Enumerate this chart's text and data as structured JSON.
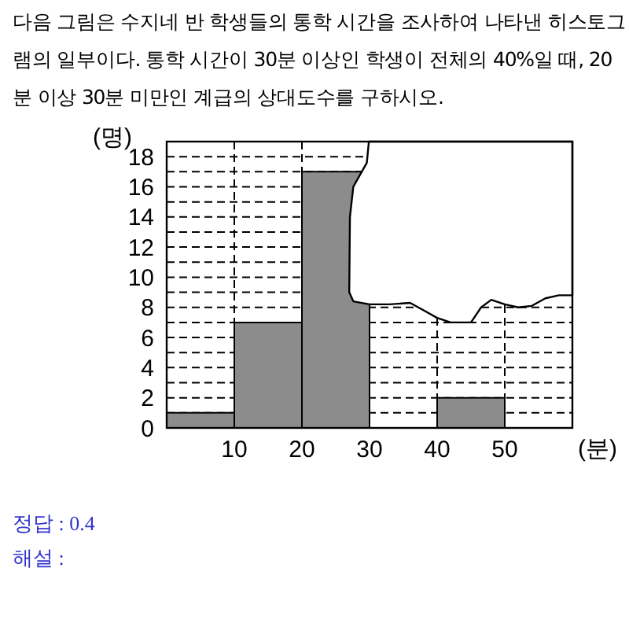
{
  "chart_data": {
    "type": "histogram",
    "title": "다음 그림은 수지네 반 학생들의 통학 시간을 조사하여 나타낸 히스토그램의 일부이다. 통학 시간이 30분 이상인 학생이 전체의 40%일 때, 20분 이상 30분 미만인 계급의 상대도수를 구하시오.",
    "xlabel": "(분)",
    "ylabel": "(명)",
    "bins": [
      0,
      10,
      20,
      30,
      40,
      50,
      60
    ],
    "values": [
      1,
      7,
      17,
      null,
      2,
      0
    ],
    "color": "#8c8c8c",
    "xlim": [
      0,
      60
    ],
    "ylim": [
      0,
      19
    ],
    "xticks": [
      10,
      20,
      30,
      40,
      50
    ],
    "yticks": [
      0,
      {
        "value": 1,
        "label": null
      },
      2,
      {
        "value": 3,
        "label": null
      },
      4,
      {
        "value": 5,
        "label": null
      },
      6,
      {
        "value": 7,
        "label": null
      },
      8,
      {
        "value": 9,
        "label": null
      },
      10,
      {
        "value": 11,
        "label": null
      },
      12,
      {
        "value": 13,
        "label": null
      },
      14,
      {
        "value": 15,
        "label": null
      },
      16,
      {
        "value": 17,
        "label": null
      },
      18
    ],
    "grid": true,
    "annotations": [
      "정답 : 0.4",
      "해설 :"
    ]
  }
}
